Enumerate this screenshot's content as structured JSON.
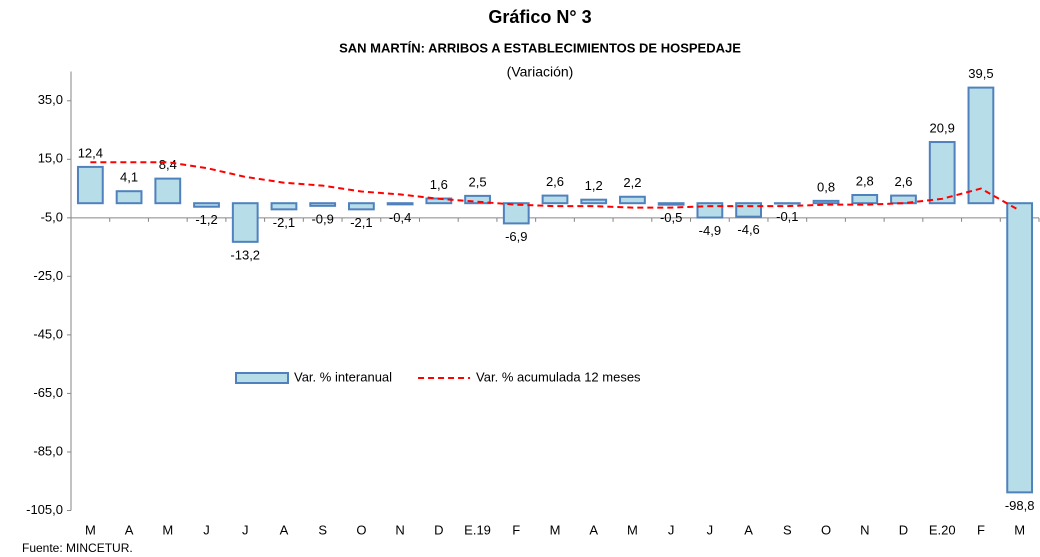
{
  "chart_data": {
    "type": "bar",
    "title": "Gráfico N° 3",
    "subtitle": "SAN MARTÍN: ARRIBOS A ESTABLECIMIENTOS DE HOSPEDAJE",
    "note": "(Variación)",
    "source": "Fuente: MINCETUR.",
    "categories": [
      "M",
      "A",
      "M",
      "J",
      "J",
      "A",
      "S",
      "O",
      "N",
      "D",
      "E.19",
      "F",
      "M",
      "A",
      "M",
      "J",
      "J",
      "A",
      "S",
      "O",
      "N",
      "D",
      "E.20",
      "F",
      "M"
    ],
    "series": [
      {
        "name": "Var. % interanual",
        "type": "bar",
        "color": "#b7dde8",
        "stroke": "#4f81bd",
        "values": [
          12.4,
          4.1,
          8.4,
          -1.2,
          -13.2,
          -2.1,
          -0.9,
          -2.1,
          -0.4,
          1.6,
          2.5,
          -6.9,
          2.6,
          1.2,
          2.2,
          -0.5,
          -4.9,
          -4.6,
          -0.1,
          0.8,
          2.8,
          2.6,
          20.9,
          39.5,
          -98.8
        ],
        "value_labels": [
          "12,4",
          "4,1",
          "8,4",
          "-1,2",
          "-13,2",
          "-2,1",
          "-0,9",
          "-2,1",
          "-0,4",
          "1,6",
          "2,5",
          "-6,9",
          "2,6",
          "1,2",
          "2,2",
          "-0,5",
          "-4,9",
          "-4,6",
          "-0,1",
          "0,8",
          "2,8",
          "2,6",
          "20,9",
          "39,5",
          "-98,8"
        ]
      },
      {
        "name": "Var. % acumulada 12 meses",
        "type": "line",
        "color": "#ff0000",
        "values": [
          14,
          14,
          14,
          12,
          9,
          7,
          6,
          4,
          3,
          1.5,
          0.5,
          -0.5,
          -1,
          -1,
          -1.5,
          -1.5,
          -1,
          -1,
          -1,
          -0.5,
          -0.5,
          0,
          1.5,
          5,
          -2.5
        ]
      }
    ],
    "ylim": [
      -105,
      45
    ],
    "yticks": [
      {
        "value": -105,
        "label": "-105,0"
      },
      {
        "value": -85,
        "label": "-85,0"
      },
      {
        "value": -65,
        "label": "-65,0"
      },
      {
        "value": -45,
        "label": "-45,0"
      },
      {
        "value": -25,
        "label": "-25,0"
      },
      {
        "value": -5,
        "label": "-5,0"
      },
      {
        "value": 15,
        "label": "15,0"
      },
      {
        "value": 35,
        "label": "35,0"
      }
    ],
    "x_axis_at": -5
  }
}
